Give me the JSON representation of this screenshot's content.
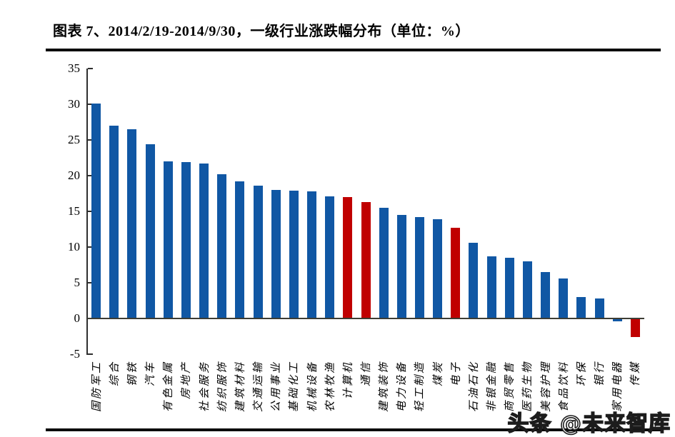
{
  "page": {
    "title": "图表 7、2014/2/19-2014/9/30，一级行业涨跌幅分布（单位：%）",
    "watermark": "头条 @未来智库"
  },
  "chart_data": {
    "type": "bar",
    "title": "图表 7、2014/2/19-2014/9/30，一级行业涨跌幅分布（单位：%）",
    "unit": "%",
    "categories": [
      "国防军工",
      "综合",
      "钢铁",
      "汽车",
      "有色金属",
      "房地产",
      "社会服务",
      "纺织服饰",
      "建筑材料",
      "交通运输",
      "公用事业",
      "基础化工",
      "机械设备",
      "农林牧渔",
      "计算机",
      "通信",
      "建筑装饰",
      "电力设备",
      "轻工制造",
      "煤炭",
      "电子",
      "石油石化",
      "非银金融",
      "商贸零售",
      "医药生物",
      "美容护理",
      "食品饮料",
      "环保",
      "银行",
      "家用电器",
      "传媒"
    ],
    "values": [
      30.1,
      27.0,
      26.5,
      24.4,
      22.0,
      21.9,
      21.7,
      20.2,
      19.2,
      18.6,
      18.0,
      17.9,
      17.8,
      17.1,
      17.0,
      16.3,
      15.5,
      14.5,
      14.2,
      13.9,
      12.7,
      10.6,
      8.7,
      8.5,
      8.0,
      6.5,
      5.6,
      3.0,
      2.8,
      -0.4,
      -2.6
    ],
    "bar_colors": [
      "blue",
      "blue",
      "blue",
      "blue",
      "blue",
      "blue",
      "blue",
      "blue",
      "blue",
      "blue",
      "blue",
      "blue",
      "blue",
      "blue",
      "red",
      "red",
      "blue",
      "blue",
      "blue",
      "blue",
      "red",
      "blue",
      "blue",
      "blue",
      "blue",
      "blue",
      "blue",
      "blue",
      "blue",
      "blue",
      "red"
    ],
    "palette": {
      "blue": "#1057A4",
      "red": "#C00000"
    },
    "ylim": [
      -5,
      35
    ],
    "yticks": [
      35,
      30,
      25,
      20,
      15,
      10,
      5,
      0,
      -5
    ],
    "grid": false,
    "legend_position": "none",
    "xlabel": "",
    "ylabel": ""
  }
}
